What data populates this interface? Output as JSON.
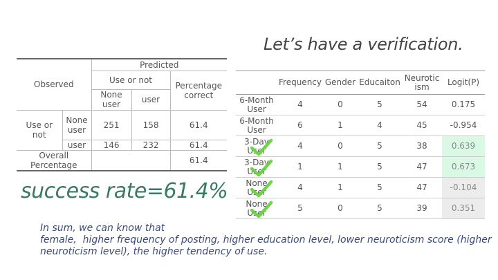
{
  "title": "Let’s have a verification.",
  "success_rate": "success rate=61.4%",
  "summary": {
    "line1": "In sum, we can know that",
    "line2": "female,  higher frequency of posting, higher education level, lower neuroticism score (higher",
    "line3": "neuroticism level), the higher tendency of use."
  },
  "classification": {
    "observed": "Observed",
    "predicted": "Predicted",
    "use_or_not_top": "Use or not",
    "percentage_correct": "Percentage correct",
    "none_user": "None user",
    "user": "user",
    "use_or_not_row": "Use or not",
    "rows": [
      {
        "label": "None user",
        "none_user": "251",
        "user": "158",
        "pct": "61.4"
      },
      {
        "label": "user",
        "none_user": "146",
        "user": "232",
        "pct": "61.4"
      }
    ],
    "overall_label": "Overall Percentage",
    "overall_pct": "61.4"
  },
  "verification": {
    "headers": [
      "",
      "Frequency",
      "Gender",
      "Educaiton",
      "Neurotic ism",
      "Logit(P)"
    ],
    "rows": [
      {
        "obs": "6-Month User",
        "frequency": "4",
        "gender": "0",
        "education": "5",
        "neuroticism": "54",
        "logit": "0.175",
        "highlight": "none",
        "check": false
      },
      {
        "obs": "6-Month User",
        "frequency": "6",
        "gender": "1",
        "education": "4",
        "neuroticism": "45",
        "logit": "-0.954",
        "highlight": "none",
        "check": false
      },
      {
        "obs": "3-Day User",
        "frequency": "4",
        "gender": "0",
        "education": "5",
        "neuroticism": "38",
        "logit": "0.639",
        "highlight": "green",
        "check": true
      },
      {
        "obs": "3-Day User",
        "frequency": "1",
        "gender": "1",
        "education": "5",
        "neuroticism": "47",
        "logit": "0.673",
        "highlight": "green",
        "check": true
      },
      {
        "obs": "None User",
        "frequency": "4",
        "gender": "1",
        "education": "5",
        "neuroticism": "47",
        "logit": "-0.104",
        "highlight": "gray",
        "check": true
      },
      {
        "obs": "None User",
        "frequency": "5",
        "gender": "0",
        "education": "5",
        "neuroticism": "39",
        "logit": "0.351",
        "highlight": "gray",
        "check": true
      }
    ]
  },
  "colors": {
    "check_green": "#6fd34a",
    "highlight_green": "#d9f9e4",
    "highlight_gray": "#ececec",
    "success_text": "#3b7a62",
    "summary_text": "#3a4a7a"
  },
  "icons": {
    "check": "checkmark-icon"
  }
}
